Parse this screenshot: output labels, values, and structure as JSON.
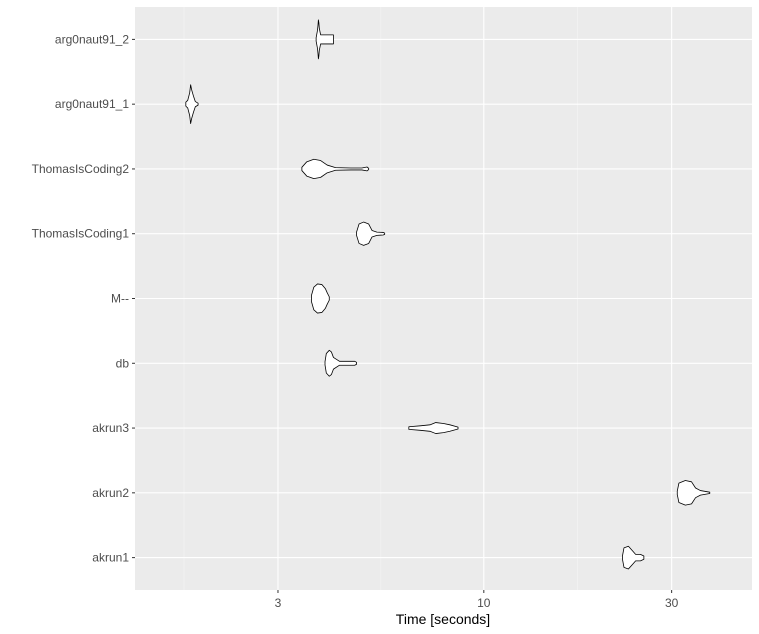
{
  "chart_data": {
    "type": "violin",
    "xlabel": "Time [seconds]",
    "ylabel": "",
    "x_scale": "log10",
    "xlim": [
      1.3,
      48
    ],
    "x_ticks": [
      3,
      10,
      30
    ],
    "x_tick_labels": [
      "3",
      "10",
      "30"
    ],
    "x_minor_ticks": [
      1.732,
      5.477,
      17.32
    ],
    "categories": [
      "arg0naut91_2",
      "arg0naut91_1",
      "ThomasIsCoding2",
      "ThomasIsCoding1",
      "M--",
      "db",
      "akrun3",
      "akrun2",
      "akrun1"
    ],
    "series": [
      {
        "category": "arg0naut91_2",
        "min": 3.75,
        "max": 4.15,
        "profile": [
          [
            3.75,
            0.05
          ],
          [
            3.78,
            0.28
          ],
          [
            3.79,
            0.42
          ],
          [
            3.8,
            0.6
          ],
          [
            3.81,
            0.52
          ],
          [
            3.82,
            0.34
          ],
          [
            3.85,
            0.14
          ],
          [
            3.95,
            0.14
          ],
          [
            4.05,
            0.14
          ],
          [
            4.1,
            0.14
          ],
          [
            4.15,
            0.14
          ]
        ]
      },
      {
        "category": "arg0naut91_1",
        "min": 1.75,
        "max": 1.88,
        "profile": [
          [
            1.75,
            0.06
          ],
          [
            1.77,
            0.12
          ],
          [
            1.79,
            0.35
          ],
          [
            1.8,
            0.6
          ],
          [
            1.81,
            0.45
          ],
          [
            1.83,
            0.25
          ],
          [
            1.85,
            0.08
          ],
          [
            1.88,
            0.03
          ]
        ]
      },
      {
        "category": "ThomasIsCoding2",
        "min": 3.45,
        "max": 5.1,
        "profile": [
          [
            3.45,
            0.05
          ],
          [
            3.55,
            0.22
          ],
          [
            3.7,
            0.3
          ],
          [
            3.85,
            0.26
          ],
          [
            4.0,
            0.12
          ],
          [
            4.2,
            0.04
          ],
          [
            4.6,
            0.03
          ],
          [
            4.9,
            0.03
          ],
          [
            5.05,
            0.06
          ],
          [
            5.1,
            0.02
          ]
        ]
      },
      {
        "category": "ThomasIsCoding1",
        "min": 4.75,
        "max": 5.6,
        "profile": [
          [
            4.75,
            0.05
          ],
          [
            4.82,
            0.3
          ],
          [
            4.95,
            0.36
          ],
          [
            5.1,
            0.3
          ],
          [
            5.2,
            0.1
          ],
          [
            5.35,
            0.05
          ],
          [
            5.55,
            0.04
          ],
          [
            5.6,
            0.02
          ]
        ]
      },
      {
        "category": "M--",
        "min": 3.65,
        "max": 4.05,
        "profile": [
          [
            3.65,
            0.1
          ],
          [
            3.7,
            0.35
          ],
          [
            3.78,
            0.45
          ],
          [
            3.88,
            0.43
          ],
          [
            3.96,
            0.3
          ],
          [
            4.0,
            0.18
          ],
          [
            4.05,
            0.05
          ]
        ]
      },
      {
        "category": "db",
        "min": 3.95,
        "max": 4.75,
        "profile": [
          [
            3.95,
            0.05
          ],
          [
            3.98,
            0.3
          ],
          [
            4.05,
            0.4
          ],
          [
            4.1,
            0.35
          ],
          [
            4.15,
            0.18
          ],
          [
            4.3,
            0.06
          ],
          [
            4.55,
            0.06
          ],
          [
            4.7,
            0.06
          ],
          [
            4.75,
            0.03
          ]
        ]
      },
      {
        "category": "akrun3",
        "min": 6.45,
        "max": 8.6,
        "profile": [
          [
            6.45,
            0.04
          ],
          [
            6.9,
            0.07
          ],
          [
            7.3,
            0.1
          ],
          [
            7.55,
            0.17
          ],
          [
            7.9,
            0.14
          ],
          [
            8.2,
            0.1
          ],
          [
            8.6,
            0.03
          ]
        ]
      },
      {
        "category": "akrun2",
        "min": 31,
        "max": 37.5,
        "profile": [
          [
            31,
            0.05
          ],
          [
            31.3,
            0.3
          ],
          [
            32.5,
            0.38
          ],
          [
            33.7,
            0.34
          ],
          [
            34.5,
            0.15
          ],
          [
            35.5,
            0.07
          ],
          [
            37.5,
            0.02
          ]
        ]
      },
      {
        "category": "akrun1",
        "min": 22.5,
        "max": 25.5,
        "profile": [
          [
            22.5,
            0.05
          ],
          [
            22.7,
            0.3
          ],
          [
            23.3,
            0.35
          ],
          [
            23.9,
            0.2
          ],
          [
            24.3,
            0.1
          ],
          [
            25.0,
            0.1
          ],
          [
            25.5,
            0.05
          ]
        ]
      }
    ],
    "grid": true,
    "legend": "none"
  }
}
